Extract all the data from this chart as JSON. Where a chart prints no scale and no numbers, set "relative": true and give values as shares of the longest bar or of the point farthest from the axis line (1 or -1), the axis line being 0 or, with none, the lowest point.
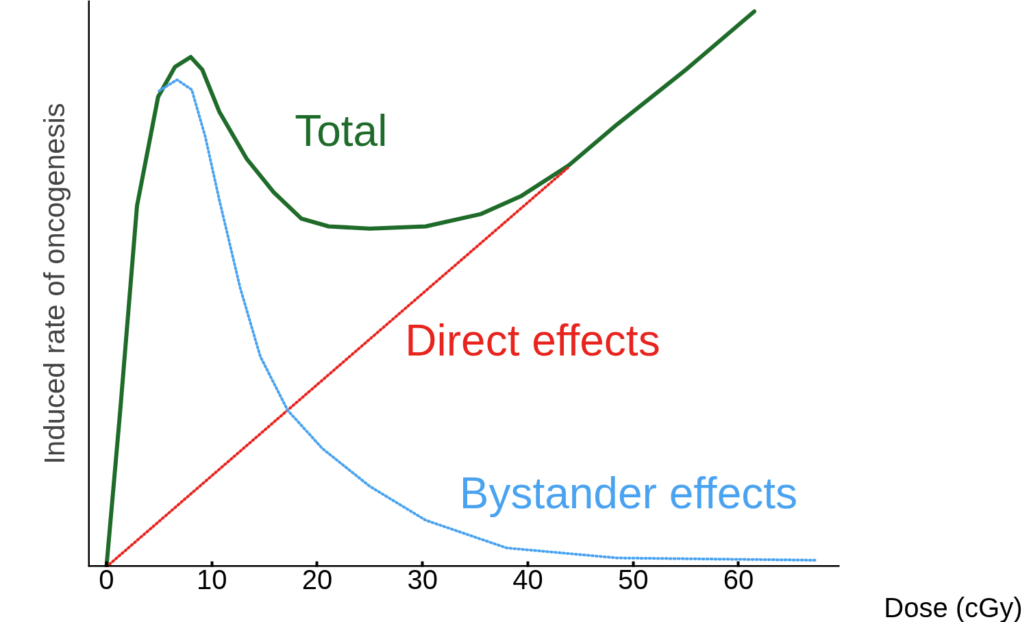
{
  "chart_data": {
    "type": "line",
    "relative": true,
    "xlabel": "Dose (cGy)",
    "ylabel": "Induced rate of oncogenesis",
    "xlim": [
      -1.75,
      69.6
    ],
    "xticks": [
      0,
      10,
      20,
      30,
      40,
      50,
      60
    ],
    "grid": false,
    "series": [
      {
        "name": "Total",
        "color": "#1f6b2a",
        "line_style": "solid",
        "x": [
          0,
          1.3,
          2.9,
          4.9,
          6.5,
          8,
          9.1,
          10.7,
          13.3,
          15.9,
          18.5,
          21.1,
          25,
          30.3,
          35.5,
          39.4,
          43.9,
          48.5,
          55,
          61.5
        ],
        "values": [
          0,
          0.28,
          0.65,
          0.846,
          0.9,
          0.918,
          0.895,
          0.82,
          0.735,
          0.674,
          0.627,
          0.613,
          0.609,
          0.613,
          0.635,
          0.668,
          0.723,
          0.797,
          0.895,
          1
        ]
      },
      {
        "name": "Direct effects",
        "color": "#e8241f",
        "line_style": "dotted",
        "x": [
          0,
          43.9
        ],
        "values": [
          0,
          0.72
        ]
      },
      {
        "name": "Bystander effects",
        "color": "#4aa3f0",
        "line_style": "dotted",
        "x": [
          5,
          6.7,
          8.1,
          9.4,
          10.7,
          12.7,
          14.6,
          17.2,
          20.5,
          25,
          30.3,
          38,
          48.5,
          67.3
        ],
        "values": [
          0.857,
          0.877,
          0.859,
          0.773,
          0.662,
          0.502,
          0.379,
          0.282,
          0.213,
          0.145,
          0.084,
          0.034,
          0.016,
          0.012
        ]
      }
    ]
  }
}
